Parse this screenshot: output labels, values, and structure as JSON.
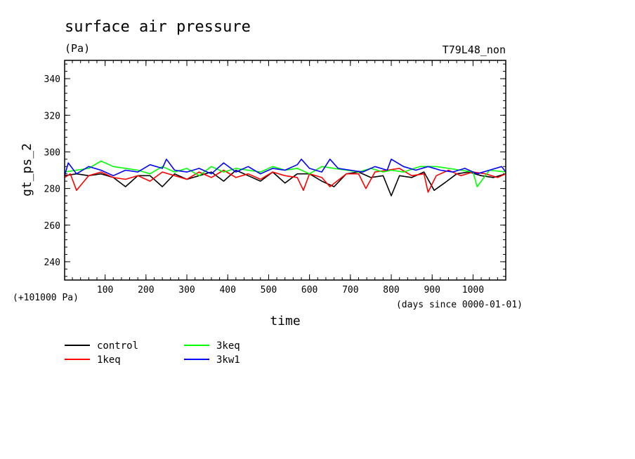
{
  "chart_data": {
    "type": "line",
    "title": "surface air pressure",
    "units": "(Pa)",
    "experiment": "T79L48_non",
    "ylabel": "gt_ps_2",
    "xlabel": "time",
    "offset_note": "(+101000 Pa)",
    "x_units_note": "(days since 0000-01-01)",
    "xlim": [
      1,
      1080
    ],
    "ylim": [
      230,
      350
    ],
    "xticks": [
      100,
      200,
      300,
      400,
      500,
      600,
      700,
      800,
      900,
      1000
    ],
    "yticks": [
      240,
      260,
      280,
      300,
      320,
      340
    ],
    "grid": false,
    "legend_position": "bottom-left",
    "series": [
      {
        "name": "control",
        "color": "#000000",
        "x": [
          1,
          30,
          60,
          90,
          120,
          150,
          180,
          210,
          240,
          270,
          300,
          330,
          360,
          390,
          420,
          450,
          480,
          510,
          540,
          570,
          600,
          630,
          660,
          690,
          720,
          750,
          780,
          800,
          820,
          850,
          880,
          905,
          930,
          960,
          990,
          1020,
          1050,
          1080
        ],
        "values": [
          287,
          288,
          287,
          288,
          286,
          281,
          287,
          287,
          281,
          288,
          285,
          287,
          289,
          284,
          290,
          287,
          284,
          289,
          283,
          288,
          288,
          284,
          281,
          288,
          289,
          286,
          287,
          276,
          287,
          286,
          289,
          279,
          283,
          288,
          289,
          287,
          286,
          288
        ]
      },
      {
        "name": "1keq",
        "color": "#ff0000",
        "x": [
          1,
          15,
          30,
          60,
          90,
          120,
          150,
          180,
          210,
          240,
          270,
          300,
          330,
          360,
          390,
          420,
          450,
          480,
          510,
          540,
          570,
          585,
          600,
          630,
          650,
          690,
          720,
          738,
          760,
          790,
          820,
          850,
          880,
          890,
          910,
          940,
          970,
          1000,
          1030,
          1060,
          1080
        ],
        "values": [
          286,
          288,
          279,
          287,
          289,
          286,
          285,
          287,
          284,
          289,
          287,
          285,
          289,
          286,
          290,
          286,
          288,
          285,
          289,
          287,
          286,
          279,
          288,
          286,
          281,
          288,
          288,
          280,
          289,
          290,
          291,
          287,
          288,
          278,
          287,
          290,
          287,
          289,
          288,
          286,
          288
        ]
      },
      {
        "name": "3keq",
        "color": "#00ff00",
        "x": [
          1,
          30,
          60,
          90,
          120,
          150,
          180,
          210,
          240,
          270,
          300,
          330,
          360,
          390,
          420,
          450,
          480,
          510,
          540,
          570,
          600,
          630,
          660,
          690,
          720,
          750,
          780,
          800,
          830,
          870,
          910,
          940,
          970,
          1000,
          1010,
          1040,
          1080
        ],
        "values": [
          289,
          290,
          291,
          295,
          292,
          291,
          290,
          288,
          292,
          289,
          291,
          287,
          292,
          289,
          291,
          290,
          289,
          292,
          290,
          291,
          288,
          292,
          291,
          290,
          289,
          291,
          289,
          290,
          289,
          292,
          292,
          291,
          290,
          289,
          281,
          290,
          289
        ]
      },
      {
        "name": "3kw1",
        "color": "#0000ff",
        "x": [
          1,
          10,
          30,
          60,
          90,
          120,
          150,
          180,
          210,
          240,
          250,
          270,
          300,
          330,
          360,
          390,
          420,
          450,
          480,
          510,
          540,
          570,
          580,
          600,
          630,
          650,
          670,
          700,
          730,
          760,
          790,
          800,
          830,
          860,
          890,
          920,
          950,
          980,
          1010,
          1040,
          1070,
          1080
        ],
        "values": [
          287,
          294,
          288,
          292,
          290,
          287,
          290,
          289,
          293,
          291,
          296,
          290,
          289,
          291,
          288,
          294,
          289,
          292,
          288,
          291,
          290,
          293,
          296,
          291,
          289,
          296,
          291,
          290,
          289,
          292,
          290,
          296,
          292,
          290,
          292,
          290,
          289,
          291,
          288,
          290,
          292,
          289
        ]
      }
    ]
  }
}
